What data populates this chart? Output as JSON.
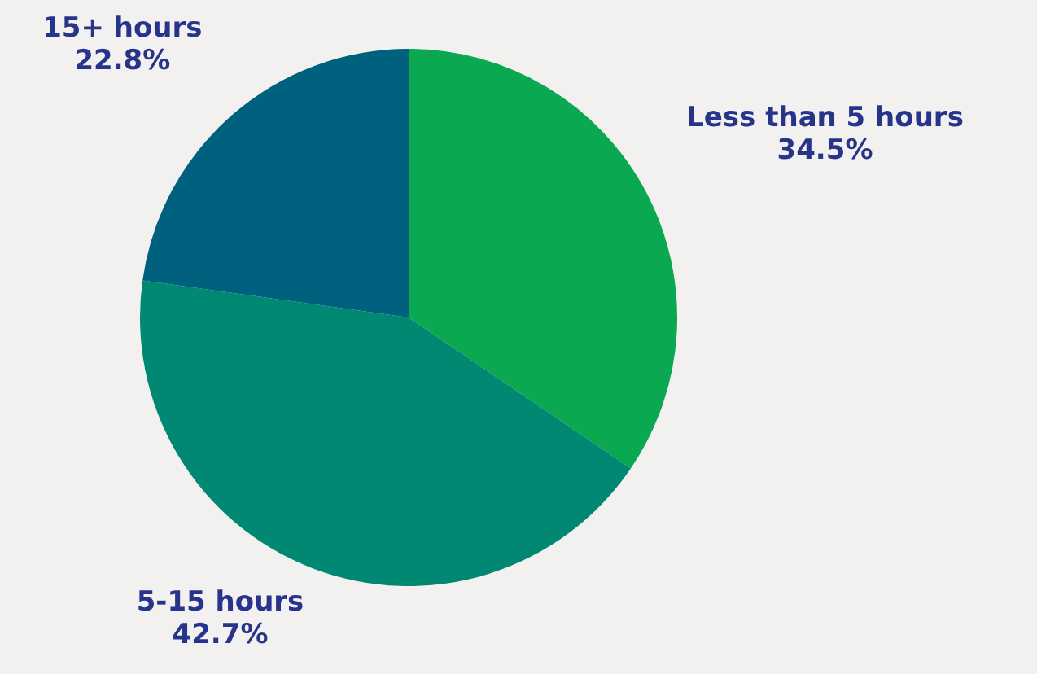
{
  "chart_data": {
    "type": "pie",
    "categories": [
      "Less than 5 hours",
      "5-15 hours",
      "15+ hours"
    ],
    "values": [
      34.5,
      42.7,
      22.8
    ],
    "value_labels": [
      "34.5%",
      "42.7%",
      "22.8%"
    ],
    "colors": [
      "#0aa851",
      "#008872",
      "#00617f"
    ],
    "legend": false
  }
}
